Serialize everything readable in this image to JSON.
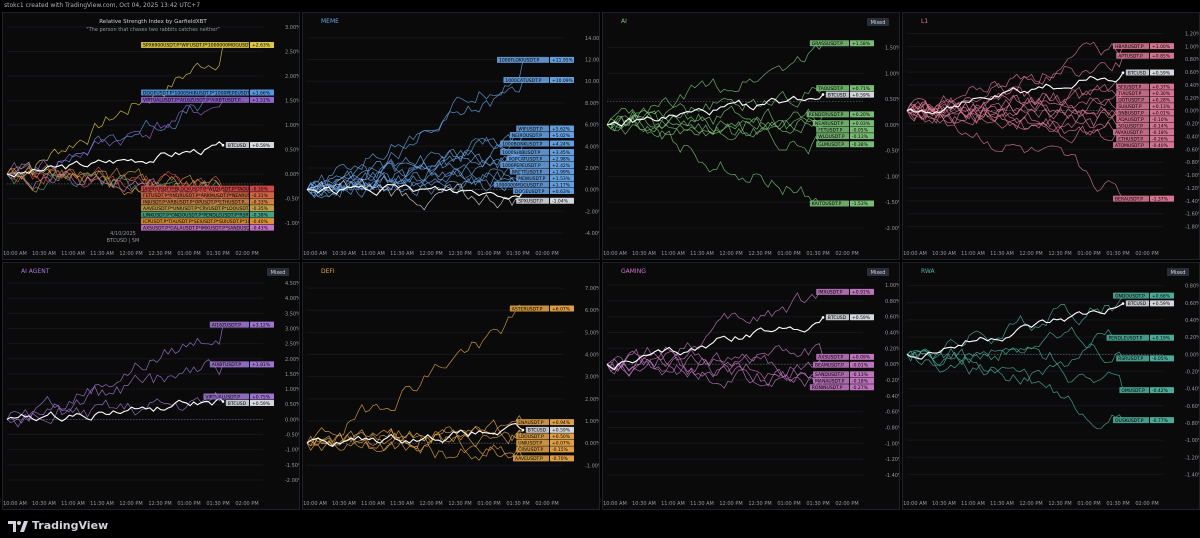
{
  "header": {
    "caption": "stokc1 created with TradingView.com, Oct 04, 2025 13:42 UTC+7"
  },
  "footer": {
    "brand": "TradingView"
  },
  "colors": {
    "bg": "#0a0a0a",
    "grid": "#14161c",
    "axis_text": "#9598a1",
    "btc": "#ffffff",
    "ref_line": "#787b86"
  },
  "chart_data": [
    {
      "type": "line",
      "panel_title": "",
      "title": "Relative Strength Index by GarfieldXBT",
      "subtitle": "\"The person that chases two rabbits catches neither\"",
      "watermark_lines": [
        "4/10/2025",
        "BTCUSD | 5M"
      ],
      "badge": "",
      "color": "#e6e6e6",
      "x_ticks": [
        "10:00 AM",
        "10:30 AM",
        "11:00 AM",
        "11:30 AM",
        "12:00 PM",
        "12:30 PM",
        "01:00 PM",
        "01:30 PM",
        "02:00 PM"
      ],
      "y_ticks": [
        "3.00%",
        "2.50%",
        "2.00%",
        "1.50%",
        "1.00%",
        "0.50%",
        "0.00%",
        "-0.50%",
        "-1.00%"
      ],
      "ylim": [
        -1.2,
        3.0
      ],
      "ref": -0.2,
      "btc_value": 0.59,
      "btc_label": "BTCUSD",
      "btc_pct": "+0.59%",
      "labels": [
        {
          "text": "SPX6900USDT.P*WIFUSDT.P*1000000MOGUSDT...",
          "pct": "+2.63%",
          "v": 2.63,
          "color": "#e8d24a"
        },
        {
          "text": "DOGEUSDT.P*1000SHIBUSDT.P*1000PEPEUSDT...",
          "pct": "+1.66%",
          "v": 1.66,
          "color": "#5b9ee6"
        },
        {
          "text": "VIRTUALUSDT.P*AI16ZUSDT.P*AIXBTUSDT.P...",
          "pct": "+1.51%",
          "v": 1.51,
          "color": "#9a68d8"
        },
        {
          "text": "JASMYUSDT.P*BLOCKUSDT.P*WLDUSDT.P*TAOUSDT.P...",
          "pct": "-0.30%",
          "v": -0.3,
          "color": "#d94a4a"
        },
        {
          "text": "FETUSDT.P*RNDRUSDT.P*ARKMUSDT.P*NEARUSDT...",
          "pct": "-0.31%",
          "v": -0.31,
          "color": "#d96a4a"
        },
        {
          "text": "INJUSDT.P*ARBUSDT.P*OPUSDT.P*ETHUSDT.P...",
          "pct": "-0.33%",
          "v": -0.33,
          "color": "#d98a4a"
        },
        {
          "text": "AAVEUSDT.P*UNIUSDT.P*CRVUSDT.P*LDOUSDT.P...",
          "pct": "-0.35%",
          "v": -0.35,
          "color": "#c9a84a"
        },
        {
          "text": "LINKUSDT.P*ONDOUSDT.P*PENDLEUSDT.P*RSRUSDT...",
          "pct": "-0.38%",
          "v": -0.38,
          "color": "#4aa88a"
        },
        {
          "text": "ICPUSDT.P*TIAUSDT.P*SEIUSDT.P*SUIUSDT.P*1000...",
          "pct": "-0.40%",
          "v": -0.4,
          "color": "#e89a3a"
        },
        {
          "text": "AXSUSDT.P*GALAUSDT.P*IMXUSDT.P*SANDUSDT...",
          "pct": "-0.43%",
          "v": -0.43,
          "color": "#d07ad0"
        }
      ]
    },
    {
      "type": "line",
      "panel_title": "MEME",
      "badge": "",
      "color": "#6aa6e8",
      "x_ticks": [
        "10:00 AM",
        "10:30 AM",
        "11:00 AM",
        "11:30 AM",
        "12:00 PM",
        "12:30 PM",
        "01:00 PM",
        "01:30 PM",
        "02:00 PM"
      ],
      "y_ticks": [
        "14.00%",
        "12.00%",
        "10.00%",
        "8.00%",
        "6.00%",
        "4.00%",
        "2.00%",
        "0.00%",
        "-2.00%",
        "-4.00%"
      ],
      "ylim": [
        -4.0,
        15.0
      ],
      "ref": 0.0,
      "btc_value": -0.2,
      "labels": [
        {
          "text": "1000FLOKIUSDT.P",
          "pct": "+11.95%",
          "v": 11.95,
          "color": "#6aa6e8"
        },
        {
          "text": "1000CATUSDT.P",
          "pct": "+10.09%",
          "v": 10.09,
          "color": "#6aa6e8"
        },
        {
          "text": "WIFUSDT.P",
          "pct": "+5.62%",
          "v": 5.62,
          "color": "#6aa6e8"
        },
        {
          "text": "NEIROUSDT.P",
          "pct": "+5.02%",
          "v": 5.02,
          "color": "#6aa6e8"
        },
        {
          "text": "1000BONKUSDT.P",
          "pct": "+4.24%",
          "v": 4.24,
          "color": "#6aa6e8"
        },
        {
          "text": "1000SHIBUSDT.P",
          "pct": "+3.45%",
          "v": 3.45,
          "color": "#6aa6e8"
        },
        {
          "text": "POPCATUSDT.P",
          "pct": "+2.98%",
          "v": 2.98,
          "color": "#6aa6e8"
        },
        {
          "text": "1000PEPEUSDT.P",
          "pct": "+2.42%",
          "v": 2.42,
          "color": "#6aa6e8"
        },
        {
          "text": "BRETTUSDT.P",
          "pct": "+1.99%",
          "v": 1.99,
          "color": "#6aa6e8"
        },
        {
          "text": "MEWUSDT.P",
          "pct": "+1.53%",
          "v": 1.53,
          "color": "#6aa6e8"
        },
        {
          "text": "1000000MOGUSDT.P",
          "pct": "+1.17%",
          "v": 1.17,
          "color": "#6aa6e8"
        },
        {
          "text": "DOGEUSDT.P",
          "pct": "+0.63%",
          "v": 0.63,
          "color": "#6aa6e8"
        },
        {
          "text": "SPXUSDT.P",
          "pct": "-1.04%",
          "v": -1.04,
          "color": "#e0e3eb"
        }
      ]
    },
    {
      "type": "line",
      "panel_title": "AI",
      "badge": "Mixed",
      "color": "#7ec57a",
      "x_ticks": [
        "10:00 AM",
        "10:30 AM",
        "11:00 AM",
        "11:30 AM",
        "12:00 PM",
        "12:30 PM",
        "01:00 PM",
        "01:30 PM",
        "02:00 PM"
      ],
      "y_ticks": [
        "1.50%",
        "1.00%",
        "0.50%",
        "0.00%",
        "-0.50%",
        "-1.00%",
        "-1.50%",
        "-2.00%"
      ],
      "ylim": [
        -2.1,
        1.9
      ],
      "ref": 0.45,
      "btc_value": 0.59,
      "btc_label": "BTCUSD",
      "btc_pct": "+0.59%",
      "labels": [
        {
          "text": "GRASSUSDT.P",
          "pct": "+1.58%",
          "v": 1.58,
          "color": "#7ec57a"
        },
        {
          "text": "TAOUSDT.P",
          "pct": "+0.71%",
          "v": 0.71,
          "color": "#7ec57a"
        },
        {
          "text": "RENDERUSDT.P",
          "pct": "+0.20%",
          "v": 0.2,
          "color": "#7ec57a"
        },
        {
          "text": "NEARUSDT.P",
          "pct": "+0.03%",
          "v": 0.03,
          "color": "#7ec57a"
        },
        {
          "text": "FETUSDT.P",
          "pct": "-0.05%",
          "v": -0.05,
          "color": "#7ec57a"
        },
        {
          "text": "WLDUSDT.P",
          "pct": "-0.13%",
          "v": -0.13,
          "color": "#7ec57a"
        },
        {
          "text": "GLMUSDT.P",
          "pct": "-0.38%",
          "v": -0.38,
          "color": "#7ec57a"
        },
        {
          "text": "KAITOUSDT.P",
          "pct": "-1.53%",
          "v": -1.53,
          "color": "#7ec57a"
        }
      ]
    },
    {
      "type": "line",
      "panel_title": "L1",
      "badge": "",
      "color": "#e07a9a",
      "x_ticks": [
        "10:00 AM",
        "10:30 AM",
        "11:00 AM",
        "11:30 AM",
        "12:00 PM",
        "12:30 PM",
        "01:00 PM",
        "01:30 PM",
        "02:00 PM"
      ],
      "y_ticks": [
        "1.20%",
        "1.00%",
        "0.80%",
        "0.60%",
        "0.40%",
        "0.20%",
        "0.00%",
        "-0.20%",
        "-0.40%",
        "-0.60%",
        "-0.80%",
        "-1.00%",
        "-1.20%",
        "-1.40%",
        "-1.60%",
        "-1.80%"
      ],
      "ylim": [
        -1.9,
        1.3
      ],
      "ref": 0.0,
      "btc_value": 0.59,
      "btc_label": "BTCUSD",
      "btc_pct": "+0.59%",
      "labels": [
        {
          "text": "HBARUSDT.P",
          "pct": "+1.00%",
          "v": 1.0,
          "color": "#e07a9a"
        },
        {
          "text": "APTUSDT.P",
          "pct": "+0.85%",
          "v": 0.85,
          "color": "#e07a9a"
        },
        {
          "text": "SEIUSDT.P",
          "pct": "+0.37%",
          "v": 0.37,
          "color": "#e07a9a"
        },
        {
          "text": "TIAUSDT.P",
          "pct": "+0.30%",
          "v": 0.3,
          "color": "#e07a9a"
        },
        {
          "text": "DOTUSDT.P",
          "pct": "+0.28%",
          "v": 0.28,
          "color": "#e07a9a"
        },
        {
          "text": "SUIUSDT.P",
          "pct": "+0.13%",
          "v": 0.13,
          "color": "#e07a9a"
        },
        {
          "text": "BNBUSDT.P",
          "pct": "+0.01%",
          "v": 0.01,
          "color": "#e07a9a"
        },
        {
          "text": "ADAUSDT.P",
          "pct": "-0.10%",
          "v": -0.1,
          "color": "#e07a9a"
        },
        {
          "text": "SOLUSDT.P",
          "pct": "-0.14%",
          "v": -0.14,
          "color": "#e07a9a"
        },
        {
          "text": "AVAXUSDT.P",
          "pct": "-0.18%",
          "v": -0.18,
          "color": "#e07a9a"
        },
        {
          "text": "ETHUSDT.P",
          "pct": "-0.26%",
          "v": -0.26,
          "color": "#e07a9a"
        },
        {
          "text": "ATOMUSDT.P",
          "pct": "-0.40%",
          "v": -0.4,
          "color": "#e07a9a"
        },
        {
          "text": "BERAUSDT.P",
          "pct": "-1.37%",
          "v": -1.37,
          "color": "#e07a9a"
        }
      ]
    },
    {
      "type": "line",
      "panel_title": "AI AGENT",
      "badge": "Mixed",
      "color": "#a67bd9",
      "x_ticks": [
        "10:00 AM",
        "10:30 AM",
        "11:00 AM",
        "11:30 AM",
        "12:00 PM",
        "12:30 PM",
        "01:00 PM",
        "01:30 PM",
        "02:00 PM"
      ],
      "y_ticks": [
        "4.50%",
        "4.00%",
        "3.50%",
        "3.00%",
        "2.50%",
        "2.00%",
        "1.50%",
        "1.00%",
        "0.50%",
        "0.00%",
        "-0.50%",
        "-1.00%",
        "-1.50%",
        "-2.00%"
      ],
      "ylim": [
        -2.1,
        4.7
      ],
      "ref": 0.0,
      "btc_value": 0.59,
      "btc_label": "BTCUSD",
      "btc_pct": "+0.59%",
      "labels": [
        {
          "text": "AI16ZUSDT.P",
          "pct": "+3.12%",
          "v": 3.12,
          "color": "#a67bd9"
        },
        {
          "text": "AIXBTUSDT.P",
          "pct": "+1.81%",
          "v": 1.81,
          "color": "#a67bd9"
        },
        {
          "text": "VIRTUALUSDT.P",
          "pct": "+0.75%",
          "v": 0.75,
          "color": "#a67bd9"
        }
      ]
    },
    {
      "type": "line",
      "panel_title": "DEFI",
      "badge": "",
      "color": "#e8a84a",
      "x_ticks": [
        "10:00 AM",
        "10:30 AM",
        "11:00 AM",
        "11:30 AM",
        "12:00 PM",
        "12:30 PM",
        "01:00 PM",
        "01:30 PM",
        "02:00 PM"
      ],
      "y_ticks": [
        "7.00%",
        "6.00%",
        "5.00%",
        "4.00%",
        "3.00%",
        "2.00%",
        "1.00%",
        "0.00%",
        "-1.00%"
      ],
      "ylim": [
        -1.8,
        7.5
      ],
      "ref": 0.0,
      "btc_value": 0.59,
      "btc_label": "BTCUSD",
      "btc_pct": "+0.59%",
      "labels": [
        {
          "text": "ASTERUSDT.P",
          "pct": "+6.07%",
          "v": 6.07,
          "color": "#e8a84a"
        },
        {
          "text": "ENAUSDT.P",
          "pct": "+0.94%",
          "v": 0.94,
          "color": "#e8a84a"
        },
        {
          "text": "LDOUSDT.P",
          "pct": "+0.50%",
          "v": 0.5,
          "color": "#e8a84a"
        },
        {
          "text": "UNIUSDT.P",
          "pct": "+0.07%",
          "v": 0.07,
          "color": "#e8a84a"
        },
        {
          "text": "CRVUSDT.P",
          "pct": "-0.15%",
          "v": -0.15,
          "color": "#e8a84a"
        },
        {
          "text": "AAVEUSDT.P",
          "pct": "-0.70%",
          "v": -0.7,
          "color": "#e8a84a"
        }
      ]
    },
    {
      "type": "line",
      "panel_title": "GAMING",
      "badge": "Mixed",
      "color": "#c77ac7",
      "x_ticks": [
        "10:00 AM",
        "10:30 AM",
        "11:00 AM",
        "11:30 AM",
        "12:00 PM",
        "12:30 PM",
        "01:00 PM",
        "01:30 PM",
        "02:00 PM"
      ],
      "y_ticks": [
        "1.00%",
        "0.80%",
        "0.60%",
        "0.40%",
        "0.20%",
        "0.00%",
        "-0.20%",
        "-0.40%",
        "-0.60%",
        "-0.80%",
        "-1.00%",
        "-1.20%",
        "-1.40%"
      ],
      "ylim": [
        -1.5,
        1.1
      ],
      "ref": 0.0,
      "btc_value": 0.59,
      "btc_label": "BTCUSD",
      "btc_pct": "+0.59%",
      "labels": [
        {
          "text": "IMXUSDT.P",
          "pct": "+0.91%",
          "v": 0.91,
          "color": "#c77ac7"
        },
        {
          "text": "AXSUSDT.P",
          "pct": "+0.09%",
          "v": 0.09,
          "color": "#c77ac7"
        },
        {
          "text": "BEAMUSDT.P",
          "pct": "-0.01%",
          "v": -0.01,
          "color": "#c77ac7"
        },
        {
          "text": "SANDUSDT.P",
          "pct": "-0.13%",
          "v": -0.13,
          "color": "#c77ac7"
        },
        {
          "text": "MANAUSDT.P",
          "pct": "-0.18%",
          "v": -0.18,
          "color": "#c77ac7"
        },
        {
          "text": "RONINUSDT.P",
          "pct": "-0.27%",
          "v": -0.27,
          "color": "#c77ac7"
        }
      ]
    },
    {
      "type": "line",
      "panel_title": "RWA",
      "badge": "Mixed",
      "color": "#4fb3a0",
      "x_ticks": [
        "10:00 AM",
        "10:30 AM",
        "11:00 AM",
        "11:30 AM",
        "12:00 PM",
        "12:30 PM",
        "01:00 PM",
        "01:30 PM",
        "02:00 PM"
      ],
      "y_ticks": [
        "0.80%",
        "0.60%",
        "0.40%",
        "0.20%",
        "0.00%",
        "-0.20%",
        "-0.40%",
        "-0.60%",
        "-0.80%",
        "-1.00%",
        "-1.20%",
        "-1.40%"
      ],
      "ylim": [
        -1.5,
        0.9
      ],
      "ref": 0.0,
      "btc_value": 0.59,
      "btc_label": "BTCUSD",
      "btc_pct": "+0.59%",
      "labels": [
        {
          "text": "ONDOUSDT.P",
          "pct": "+0.68%",
          "v": 0.68,
          "color": "#4fb3a0"
        },
        {
          "text": "PENDLEUSDT.P",
          "pct": "+0.19%",
          "v": 0.19,
          "color": "#4fb3a0"
        },
        {
          "text": "RSRUSDT.P",
          "pct": "-0.05%",
          "v": -0.05,
          "color": "#4fb3a0"
        },
        {
          "text": "OMUSDT.P",
          "pct": "-0.42%",
          "v": -0.42,
          "color": "#4fb3a0"
        },
        {
          "text": "OUSKUSDT.P",
          "pct": "-0.77%",
          "v": -0.77,
          "color": "#4fb3a0"
        }
      ]
    }
  ]
}
